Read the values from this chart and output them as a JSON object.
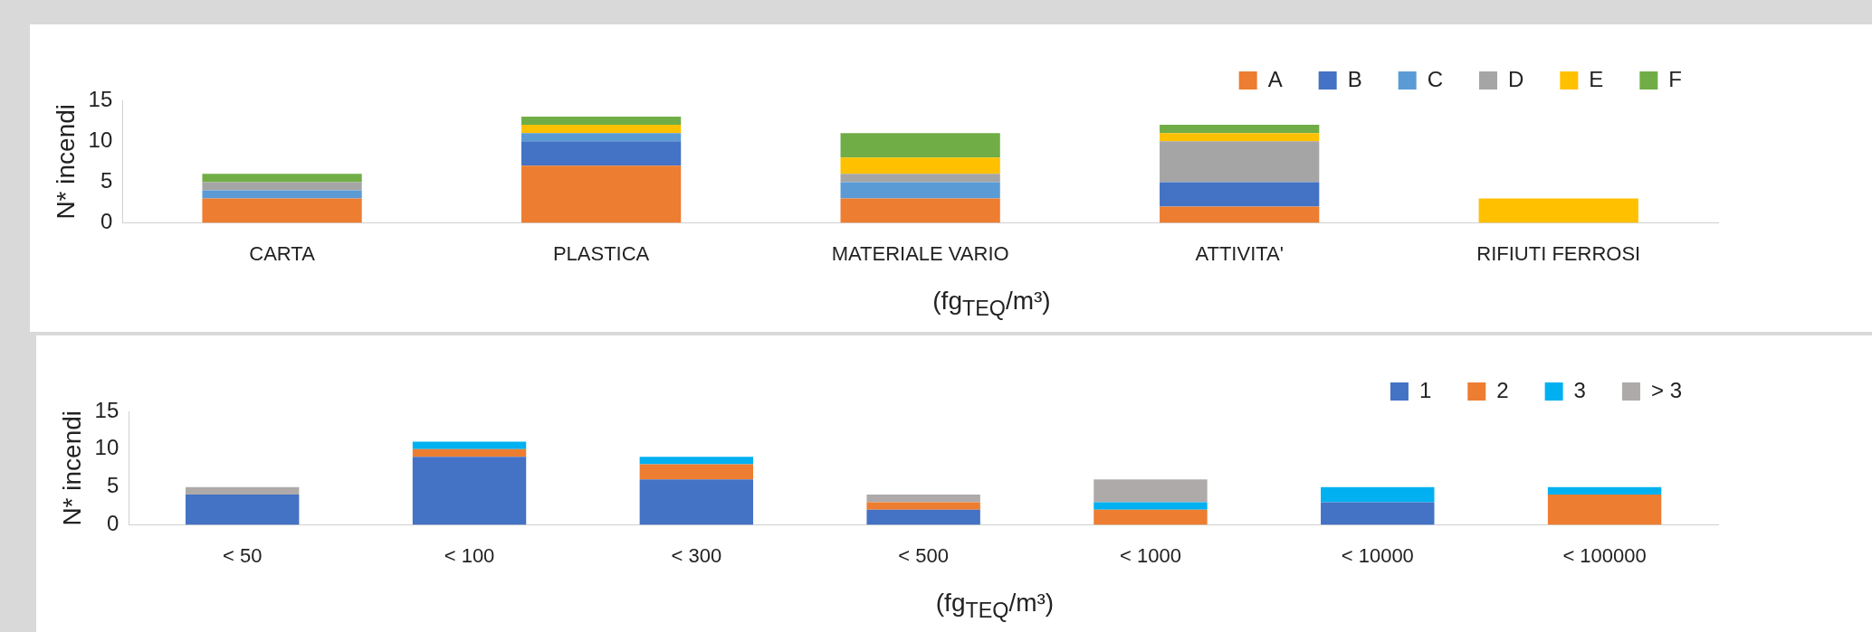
{
  "chart_data": [
    {
      "type": "bar",
      "stacked": true,
      "ylabel": "N* incendi",
      "xlabel": "(fg$_{TEQ}$/m³)",
      "categories": [
        "CARTA",
        "PLASTICA",
        "MATERIALE VARIO",
        "ATTIVITA'",
        "RIFIUTI FERROSI"
      ],
      "ylim": [
        0,
        15
      ],
      "yticks": [
        0,
        5,
        10,
        15
      ],
      "grid": false,
      "legend": "top right",
      "series": [
        {
          "name": "A",
          "color": "#ed7d31",
          "values": [
            3,
            7,
            3,
            2,
            0
          ]
        },
        {
          "name": "B",
          "color": "#4472c4",
          "values": [
            0,
            3,
            0,
            3,
            0
          ]
        },
        {
          "name": "C",
          "color": "#5b9bd5",
          "values": [
            1,
            1,
            2,
            0,
            0
          ]
        },
        {
          "name": "D",
          "color": "#a5a5a5",
          "values": [
            1,
            0,
            1,
            5,
            0
          ]
        },
        {
          "name": "E",
          "color": "#ffc000",
          "values": [
            0,
            1,
            2,
            1,
            3
          ]
        },
        {
          "name": "F",
          "color": "#70ad47",
          "values": [
            1,
            1,
            3,
            1,
            0
          ]
        }
      ]
    },
    {
      "type": "bar",
      "stacked": true,
      "ylabel": "N* incendi",
      "xlabel": "(fg$_{TEQ}$/m³)",
      "categories": [
        "< 50",
        "< 100",
        "< 300",
        "< 500",
        "< 1000",
        "< 10000",
        "< 100000"
      ],
      "ylim": [
        0,
        15
      ],
      "yticks": [
        0,
        5,
        10,
        15
      ],
      "grid": false,
      "legend": "top right",
      "series": [
        {
          "name": "1",
          "color": "#4472c4",
          "values": [
            4,
            9,
            6,
            2,
            0,
            3,
            0
          ]
        },
        {
          "name": "2",
          "color": "#ed7d31",
          "values": [
            0,
            1,
            2,
            1,
            2,
            0,
            4
          ]
        },
        {
          "name": "3",
          "color": "#00b0f0",
          "values": [
            0,
            1,
            1,
            0,
            1,
            2,
            1
          ]
        },
        {
          "name": "> 3",
          "color": "#aeaaaa",
          "values": [
            1,
            0,
            0,
            1,
            3,
            0,
            0
          ]
        }
      ]
    }
  ]
}
